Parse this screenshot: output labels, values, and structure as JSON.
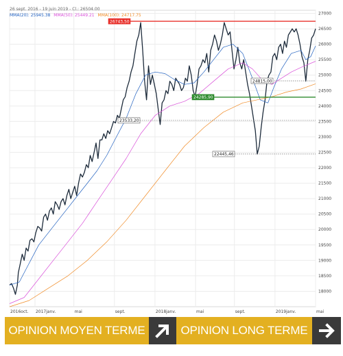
{
  "header": {
    "range_text": "26 sept. 2016 - 19 juin 2019 - Cl.: 26504.00"
  },
  "legend": [
    {
      "label": "MMA(20): 25945.38",
      "color": "#1f5fbf"
    },
    {
      "label": "MMA(50): 25449.21",
      "color": "#d94fd9"
    },
    {
      "label": "MMA(100): 24717.75",
      "color": "#f08a24"
    }
  ],
  "chart_data": {
    "type": "line",
    "x_labels": [
      "2016oct.",
      "2017janv.",
      "mai",
      "sept.",
      "2018janv.",
      "mai",
      "sept.",
      "2019janv.",
      "mai"
    ],
    "y_ticks": [
      18000,
      18500,
      19000,
      19500,
      20000,
      20500,
      21000,
      21500,
      22000,
      22500,
      23000,
      23500,
      24000,
      24500,
      25000,
      25500,
      26000,
      26500,
      27000
    ],
    "ylim": [
      17500,
      27100
    ],
    "grid": true,
    "levels": [
      {
        "value": 26743.5,
        "label": "26743,50",
        "style": "resistance",
        "color": "#e8302b"
      },
      {
        "value": 24815.0,
        "label": "24815,00",
        "style": "reference",
        "color": "#333333"
      },
      {
        "value": 24285.9,
        "label": "24285,90",
        "style": "support",
        "color": "#2e8b2e"
      },
      {
        "value": 23533.2,
        "label": "23533,20",
        "style": "reference",
        "color": "#333333"
      },
      {
        "value": 22445.46,
        "label": "22445,46",
        "style": "reference",
        "color": "#333333"
      }
    ],
    "series": [
      {
        "name": "Cl.",
        "color": "#1c2a3a",
        "points": [
          [
            0,
            18200
          ],
          [
            2,
            18250
          ],
          [
            4,
            18100
          ],
          [
            6,
            17900
          ],
          [
            8,
            18200
          ],
          [
            9,
            18600
          ],
          [
            11,
            18900
          ],
          [
            13,
            19200
          ],
          [
            15,
            19000
          ],
          [
            17,
            19400
          ],
          [
            19,
            19300
          ],
          [
            21,
            19650
          ],
          [
            23,
            19700
          ],
          [
            25,
            19600
          ],
          [
            27,
            19900
          ],
          [
            29,
            20100
          ],
          [
            31,
            20050
          ],
          [
            33,
            19950
          ],
          [
            35,
            20400
          ],
          [
            37,
            20500
          ],
          [
            39,
            20300
          ],
          [
            41,
            20600
          ],
          [
            43,
            20700
          ],
          [
            45,
            20500
          ],
          [
            47,
            20900
          ],
          [
            49,
            20800
          ],
          [
            51,
            20650
          ],
          [
            53,
            20900
          ],
          [
            55,
            21000
          ],
          [
            57,
            20800
          ],
          [
            59,
            21100
          ],
          [
            61,
            21300
          ],
          [
            63,
            21000
          ],
          [
            65,
            21200
          ],
          [
            67,
            21400
          ],
          [
            69,
            21100
          ],
          [
            71,
            21500
          ],
          [
            73,
            21800
          ],
          [
            75,
            21700
          ],
          [
            77,
            21850
          ],
          [
            79,
            22100
          ],
          [
            81,
            22000
          ],
          [
            83,
            22400
          ],
          [
            85,
            22200
          ],
          [
            87,
            22500
          ],
          [
            89,
            22800
          ],
          [
            91,
            22300
          ],
          [
            93,
            22900
          ],
          [
            95,
            22900
          ],
          [
            97,
            23100
          ],
          [
            99,
            22950
          ],
          [
            101,
            23200
          ],
          [
            103,
            23100
          ],
          [
            105,
            23300
          ],
          [
            107,
            23500
          ],
          [
            109,
            23450
          ],
          [
            111,
            23700
          ],
          [
            113,
            23600
          ],
          [
            115,
            23900
          ],
          [
            117,
            24200
          ],
          [
            119,
            24300
          ],
          [
            121,
            24600
          ],
          [
            123,
            24800
          ],
          [
            125,
            25100
          ],
          [
            127,
            25300
          ],
          [
            129,
            25700
          ],
          [
            131,
            26100
          ],
          [
            133,
            26300
          ],
          [
            135,
            26700
          ],
          [
            137,
            25800
          ],
          [
            139,
            24800
          ],
          [
            141,
            24200
          ],
          [
            143,
            25300
          ],
          [
            145,
            24700
          ],
          [
            147,
            25000
          ],
          [
            149,
            24700
          ],
          [
            151,
            24400
          ],
          [
            153,
            23900
          ],
          [
            155,
            23400
          ],
          [
            157,
            24100
          ],
          [
            159,
            24200
          ],
          [
            161,
            24500
          ],
          [
            163,
            24400
          ],
          [
            165,
            24800
          ],
          [
            167,
            24700
          ],
          [
            169,
            24500
          ],
          [
            171,
            24900
          ],
          [
            173,
            24800
          ],
          [
            175,
            24700
          ],
          [
            177,
            24500
          ],
          [
            179,
            24600
          ],
          [
            181,
            24900
          ],
          [
            183,
            24800
          ],
          [
            185,
            25300
          ],
          [
            187,
            25000
          ],
          [
            189,
            24500
          ],
          [
            191,
            24300
          ],
          [
            193,
            24700
          ],
          [
            195,
            25200
          ],
          [
            197,
            25300
          ],
          [
            199,
            25500
          ],
          [
            201,
            25400
          ],
          [
            203,
            25700
          ],
          [
            205,
            25100
          ],
          [
            207,
            25800
          ],
          [
            209,
            26000
          ],
          [
            211,
            26300
          ],
          [
            213,
            26100
          ],
          [
            215,
            25800
          ],
          [
            217,
            26000
          ],
          [
            219,
            26300
          ],
          [
            221,
            26700
          ],
          [
            223,
            26500
          ],
          [
            225,
            26300
          ],
          [
            227,
            26400
          ],
          [
            229,
            25800
          ],
          [
            231,
            25200
          ],
          [
            233,
            25500
          ],
          [
            235,
            25900
          ],
          [
            237,
            25400
          ],
          [
            239,
            25200
          ],
          [
            241,
            25500
          ],
          [
            243,
            25100
          ],
          [
            245,
            24700
          ],
          [
            247,
            24400
          ],
          [
            249,
            24000
          ],
          [
            251,
            23600
          ],
          [
            253,
            23200
          ],
          [
            255,
            22445
          ],
          [
            257,
            22700
          ],
          [
            259,
            23300
          ],
          [
            261,
            23800
          ],
          [
            263,
            24200
          ],
          [
            265,
            24800
          ],
          [
            267,
            25000
          ],
          [
            269,
            25100
          ],
          [
            271,
            25600
          ],
          [
            273,
            25700
          ],
          [
            275,
            25500
          ],
          [
            277,
            25900
          ],
          [
            279,
            26000
          ],
          [
            281,
            25700
          ],
          [
            283,
            26100
          ],
          [
            285,
            25900
          ],
          [
            287,
            26300
          ],
          [
            289,
            26400
          ],
          [
            291,
            26500
          ],
          [
            293,
            26400
          ],
          [
            295,
            26500
          ],
          [
            297,
            26300
          ],
          [
            299,
            26000
          ],
          [
            301,
            25600
          ],
          [
            303,
            25400
          ],
          [
            305,
            24800
          ],
          [
            307,
            25500
          ],
          [
            309,
            25800
          ],
          [
            311,
            26200
          ],
          [
            313,
            26300
          ],
          [
            315,
            26504
          ]
        ]
      },
      {
        "name": "MMA(20)",
        "color": "#1f5fbf",
        "points": [
          [
            0,
            18200
          ],
          [
            10,
            18300
          ],
          [
            20,
            18900
          ],
          [
            30,
            19500
          ],
          [
            40,
            19900
          ],
          [
            50,
            20300
          ],
          [
            60,
            20700
          ],
          [
            70,
            21100
          ],
          [
            80,
            21500
          ],
          [
            90,
            21900
          ],
          [
            100,
            22400
          ],
          [
            110,
            23000
          ],
          [
            120,
            23600
          ],
          [
            130,
            24400
          ],
          [
            140,
            25000
          ],
          [
            150,
            25100
          ],
          [
            160,
            25050
          ],
          [
            170,
            24850
          ],
          [
            180,
            24700
          ],
          [
            190,
            24750
          ],
          [
            200,
            25100
          ],
          [
            210,
            25500
          ],
          [
            220,
            25900
          ],
          [
            230,
            26000
          ],
          [
            240,
            25700
          ],
          [
            250,
            24900
          ],
          [
            258,
            24200
          ],
          [
            266,
            24100
          ],
          [
            272,
            24600
          ],
          [
            280,
            25200
          ],
          [
            290,
            25700
          ],
          [
            300,
            25800
          ],
          [
            305,
            25500
          ],
          [
            310,
            25600
          ],
          [
            315,
            25945
          ]
        ]
      },
      {
        "name": "MMA(50)",
        "color": "#d94fd9",
        "points": [
          [
            0,
            17600
          ],
          [
            15,
            17800
          ],
          [
            30,
            18400
          ],
          [
            45,
            19000
          ],
          [
            60,
            19600
          ],
          [
            75,
            20200
          ],
          [
            90,
            20900
          ],
          [
            105,
            21600
          ],
          [
            120,
            22300
          ],
          [
            135,
            23100
          ],
          [
            150,
            23700
          ],
          [
            165,
            24000
          ],
          [
            180,
            24150
          ],
          [
            195,
            24400
          ],
          [
            210,
            24800
          ],
          [
            225,
            25200
          ],
          [
            240,
            25400
          ],
          [
            250,
            25200
          ],
          [
            260,
            24850
          ],
          [
            270,
            24700
          ],
          [
            280,
            24900
          ],
          [
            290,
            25100
          ],
          [
            300,
            25250
          ],
          [
            315,
            25449
          ]
        ]
      },
      {
        "name": "MMA(100)",
        "color": "#f08a24",
        "points": [
          [
            0,
            17500
          ],
          [
            20,
            17700
          ],
          [
            40,
            18100
          ],
          [
            60,
            18500
          ],
          [
            80,
            19000
          ],
          [
            100,
            19600
          ],
          [
            120,
            20300
          ],
          [
            140,
            21100
          ],
          [
            160,
            21900
          ],
          [
            180,
            22700
          ],
          [
            200,
            23300
          ],
          [
            220,
            23800
          ],
          [
            240,
            24100
          ],
          [
            255,
            24200
          ],
          [
            270,
            24300
          ],
          [
            285,
            24450
          ],
          [
            300,
            24550
          ],
          [
            315,
            24718
          ]
        ]
      }
    ]
  },
  "buttons": {
    "medium_term_label": "OPINION MOYEN TERME",
    "long_term_label": "OPINION LONG TERME"
  }
}
